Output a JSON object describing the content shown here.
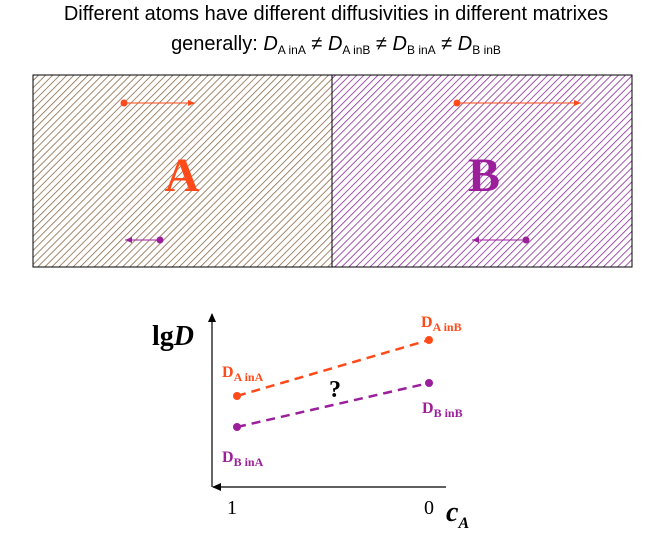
{
  "title": {
    "line1": "Different atoms have different diffusivities in different matrixes",
    "line2_prefix": "generally:",
    "terms": [
      {
        "symbol": "D",
        "sub": "A inA"
      },
      {
        "symbol": "D",
        "sub": "A inB"
      },
      {
        "symbol": "D",
        "sub": "B inA"
      },
      {
        "symbol": "D",
        "sub": "B inB"
      }
    ],
    "neq": "≠"
  },
  "diagram": {
    "region_a": {
      "label": "A",
      "label_color": "#ff4a1a",
      "hatch_color": "#8b6a4a"
    },
    "region_b": {
      "label": "B",
      "label_color": "#9b1f9b",
      "hatch_color": "#8a2a9a"
    }
  },
  "graph": {
    "y_label": {
      "prefix": "lg",
      "symbol": "D"
    },
    "x_label": {
      "symbol": "c",
      "sub": "A"
    },
    "x_ticks": [
      "1",
      "0"
    ],
    "question": "?",
    "labels": {
      "d_a_in_a": {
        "symbol": "D",
        "sub": "A inA"
      },
      "d_a_in_b": {
        "symbol": "D",
        "sub": "A inB"
      },
      "d_b_in_a": {
        "symbol": "D",
        "sub": "B inA"
      },
      "d_b_in_b": {
        "symbol": "D",
        "sub": "B inB"
      }
    },
    "series": [
      {
        "name": "A",
        "color": "#ff4a1a"
      },
      {
        "name": "B",
        "color": "#9b1f9b"
      }
    ]
  }
}
